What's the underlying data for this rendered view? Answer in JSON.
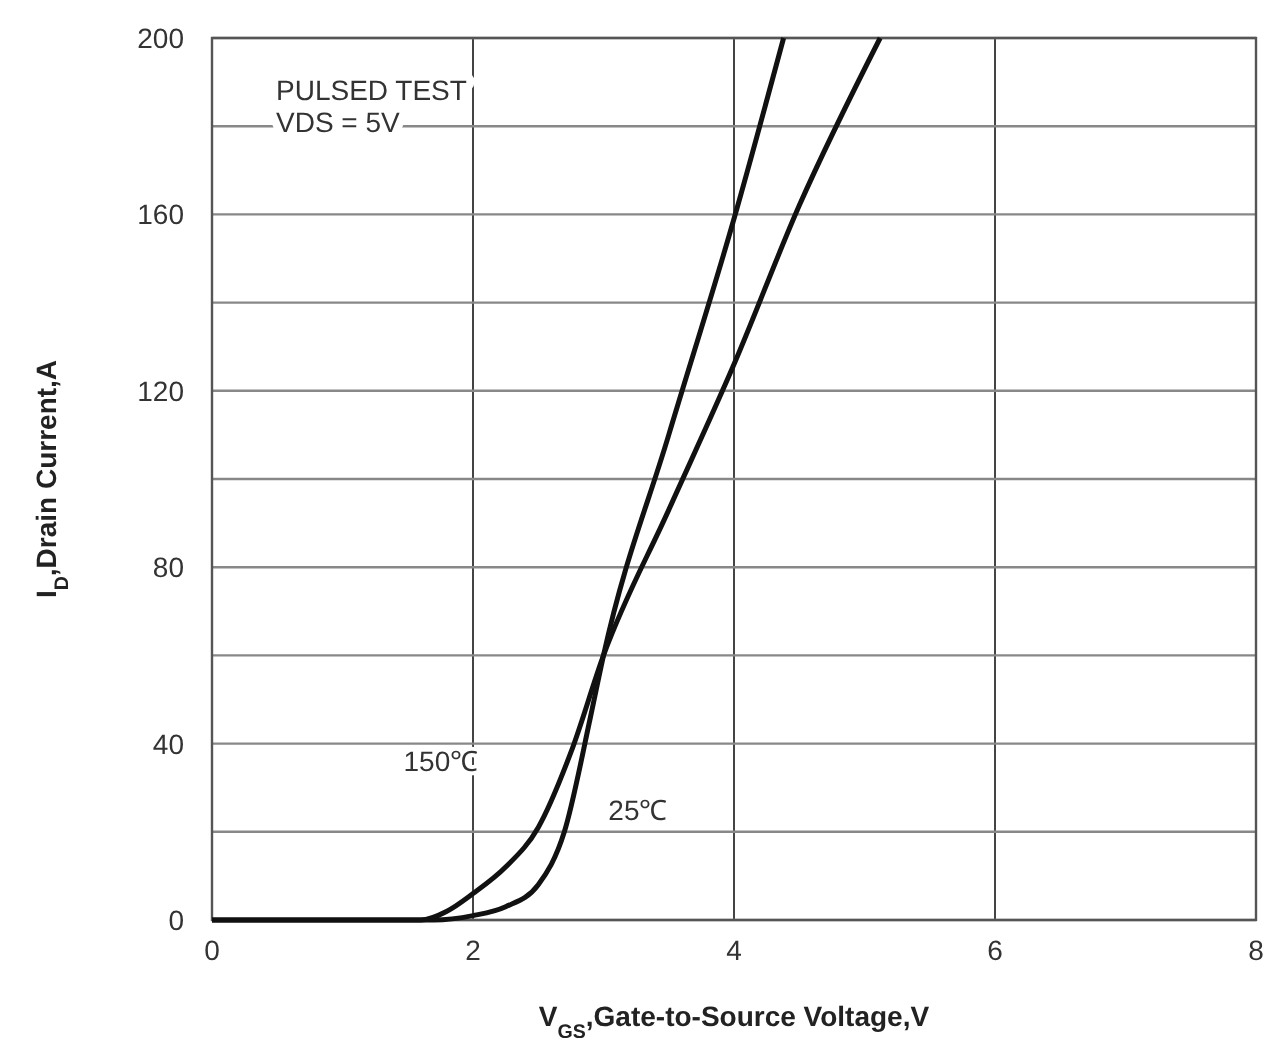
{
  "chart_data": {
    "type": "line",
    "xlabel": "V$_{GS}$,Gate-to-Source Voltage,V",
    "ylabel": "I$_{D}$,Drain Current,A",
    "xlim": [
      0,
      8
    ],
    "xticks": [
      0,
      2,
      4,
      6,
      8
    ],
    "ylim": [
      0,
      200
    ],
    "yticks": [
      0,
      {
        "value": 20,
        "label": null
      },
      40,
      {
        "value": 60,
        "label": null
      },
      80,
      {
        "value": 100,
        "label": null
      },
      120,
      {
        "value": 140,
        "label": null
      },
      160,
      {
        "value": 180,
        "label": null
      },
      200
    ],
    "grid": true,
    "line_style": "solid",
    "series": [
      {
        "name": "150℃",
        "color": "#111111",
        "x": [
          0,
          1.6,
          1.8,
          2.0,
          2.25,
          2.5,
          2.75,
          3.0,
          3.5,
          4.0,
          4.5,
          5.12
        ],
        "values": [
          0,
          0,
          2,
          6,
          12,
          21,
          38,
          60,
          93,
          126,
          162,
          200
        ]
      },
      {
        "name": "25℃",
        "color": "#111111",
        "x": [
          0,
          1.7,
          2.0,
          2.25,
          2.5,
          2.7,
          2.9,
          3.0,
          3.5,
          4.0,
          4.38
        ],
        "values": [
          0,
          0,
          1,
          3,
          8,
          20,
          46,
          60,
          110,
          159,
          200
        ]
      }
    ],
    "annotations": [
      "PULSED TEST\nVDS = 5V"
    ]
  }
}
